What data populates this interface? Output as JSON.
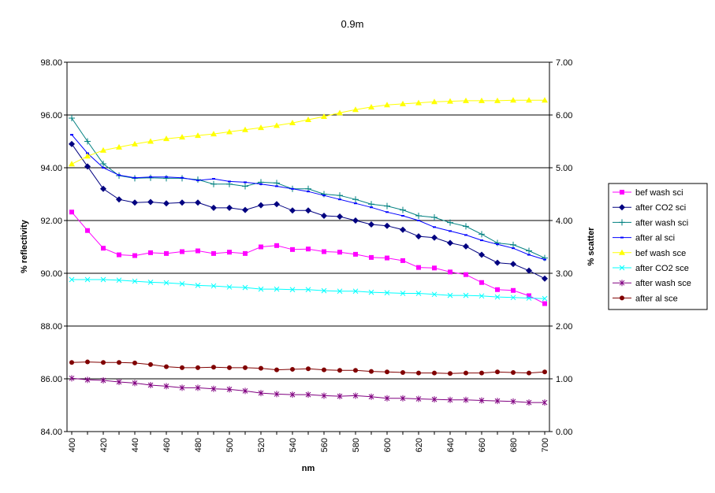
{
  "chart_data": {
    "type": "line",
    "title": "0.9m",
    "xlabel": "nm",
    "ylabel_left": "% reflectivity",
    "ylabel_right": "% scatter",
    "x": [
      400,
      410,
      420,
      430,
      440,
      450,
      460,
      470,
      480,
      490,
      500,
      510,
      520,
      530,
      540,
      550,
      560,
      570,
      580,
      590,
      600,
      610,
      620,
      630,
      640,
      650,
      660,
      670,
      680,
      690,
      700
    ],
    "x_tick_labels": [
      "400",
      "420",
      "440",
      "460",
      "480",
      "500",
      "520",
      "540",
      "560",
      "580",
      "600",
      "620",
      "640",
      "660",
      "680",
      "700"
    ],
    "ylim_left": [
      84,
      98
    ],
    "ylim_right": [
      0,
      7
    ],
    "y_left_ticks": [
      "84.00",
      "86.00",
      "88.00",
      "90.00",
      "92.00",
      "94.00",
      "96.00",
      "98.00"
    ],
    "y_right_ticks": [
      "0.00",
      "1.00",
      "2.00",
      "3.00",
      "4.00",
      "5.00",
      "6.00",
      "7.00"
    ],
    "grid": "horizontal",
    "legend_position": "right",
    "series": [
      {
        "name": "bef wash sci",
        "axis": "left",
        "color": "#ff00ff",
        "marker": "square",
        "values": [
          92.32,
          91.62,
          90.95,
          90.7,
          90.67,
          90.78,
          90.75,
          90.82,
          90.85,
          90.75,
          90.8,
          90.75,
          91.0,
          91.05,
          90.9,
          90.92,
          90.82,
          90.8,
          90.72,
          90.6,
          90.58,
          90.48,
          90.22,
          90.2,
          90.05,
          89.95,
          89.65,
          89.38,
          89.35,
          89.15,
          88.85
        ]
      },
      {
        "name": "after CO2 sci",
        "axis": "left",
        "color": "#000080",
        "marker": "diamond",
        "values": [
          94.9,
          94.05,
          93.2,
          92.8,
          92.68,
          92.7,
          92.65,
          92.68,
          92.68,
          92.48,
          92.48,
          92.4,
          92.58,
          92.62,
          92.38,
          92.38,
          92.18,
          92.15,
          92.0,
          91.85,
          91.8,
          91.65,
          91.4,
          91.35,
          91.15,
          91.02,
          90.7,
          90.4,
          90.35,
          90.1,
          89.8
        ]
      },
      {
        "name": "after wash sci",
        "axis": "left",
        "color": "#008080",
        "marker": "plus",
        "values": [
          95.88,
          95.0,
          94.15,
          93.7,
          93.6,
          93.62,
          93.6,
          93.6,
          93.55,
          93.38,
          93.38,
          93.3,
          93.45,
          93.42,
          93.2,
          93.2,
          93.0,
          92.95,
          92.8,
          92.62,
          92.55,
          92.4,
          92.18,
          92.12,
          91.92,
          91.78,
          91.48,
          91.15,
          91.08,
          90.85,
          90.58
        ]
      },
      {
        "name": "after al sci",
        "axis": "left",
        "color": "#0000ff",
        "marker": "dash",
        "values": [
          95.25,
          94.55,
          94.0,
          93.72,
          93.62,
          93.65,
          93.65,
          93.62,
          93.52,
          93.58,
          93.48,
          93.45,
          93.38,
          93.3,
          93.2,
          93.1,
          92.95,
          92.8,
          92.65,
          92.5,
          92.32,
          92.18,
          92.0,
          91.75,
          91.6,
          91.45,
          91.25,
          91.1,
          90.95,
          90.7,
          90.52
        ]
      },
      {
        "name": "bef wash sce",
        "axis": "right",
        "color": "#ffff00",
        "marker": "triangle",
        "values": [
          5.07,
          5.22,
          5.33,
          5.39,
          5.45,
          5.5,
          5.55,
          5.58,
          5.61,
          5.64,
          5.68,
          5.72,
          5.76,
          5.8,
          5.85,
          5.91,
          5.97,
          6.04,
          6.1,
          6.15,
          6.19,
          6.21,
          6.23,
          6.25,
          6.26,
          6.27,
          6.27,
          6.27,
          6.28,
          6.28,
          6.28
        ]
      },
      {
        "name": "after CO2 sce",
        "axis": "right",
        "color": "#00ffff",
        "marker": "x",
        "values": [
          2.88,
          2.88,
          2.88,
          2.87,
          2.85,
          2.83,
          2.82,
          2.8,
          2.77,
          2.76,
          2.74,
          2.73,
          2.7,
          2.7,
          2.69,
          2.69,
          2.67,
          2.66,
          2.66,
          2.64,
          2.63,
          2.62,
          2.62,
          2.6,
          2.58,
          2.58,
          2.57,
          2.55,
          2.54,
          2.53,
          2.52
        ]
      },
      {
        "name": "after wash sce",
        "axis": "right",
        "color": "#800080",
        "marker": "star",
        "values": [
          1.01,
          0.98,
          0.97,
          0.94,
          0.92,
          0.88,
          0.86,
          0.83,
          0.83,
          0.81,
          0.8,
          0.77,
          0.73,
          0.71,
          0.7,
          0.7,
          0.68,
          0.67,
          0.68,
          0.66,
          0.63,
          0.63,
          0.62,
          0.61,
          0.6,
          0.6,
          0.59,
          0.58,
          0.57,
          0.55,
          0.55
        ]
      },
      {
        "name": "after al sce",
        "axis": "right",
        "color": "#800000",
        "marker": "circle",
        "values": [
          1.31,
          1.32,
          1.31,
          1.31,
          1.3,
          1.27,
          1.23,
          1.21,
          1.21,
          1.22,
          1.21,
          1.21,
          1.2,
          1.17,
          1.18,
          1.19,
          1.17,
          1.16,
          1.16,
          1.14,
          1.13,
          1.12,
          1.11,
          1.11,
          1.1,
          1.11,
          1.11,
          1.13,
          1.12,
          1.11,
          1.13
        ]
      }
    ]
  }
}
